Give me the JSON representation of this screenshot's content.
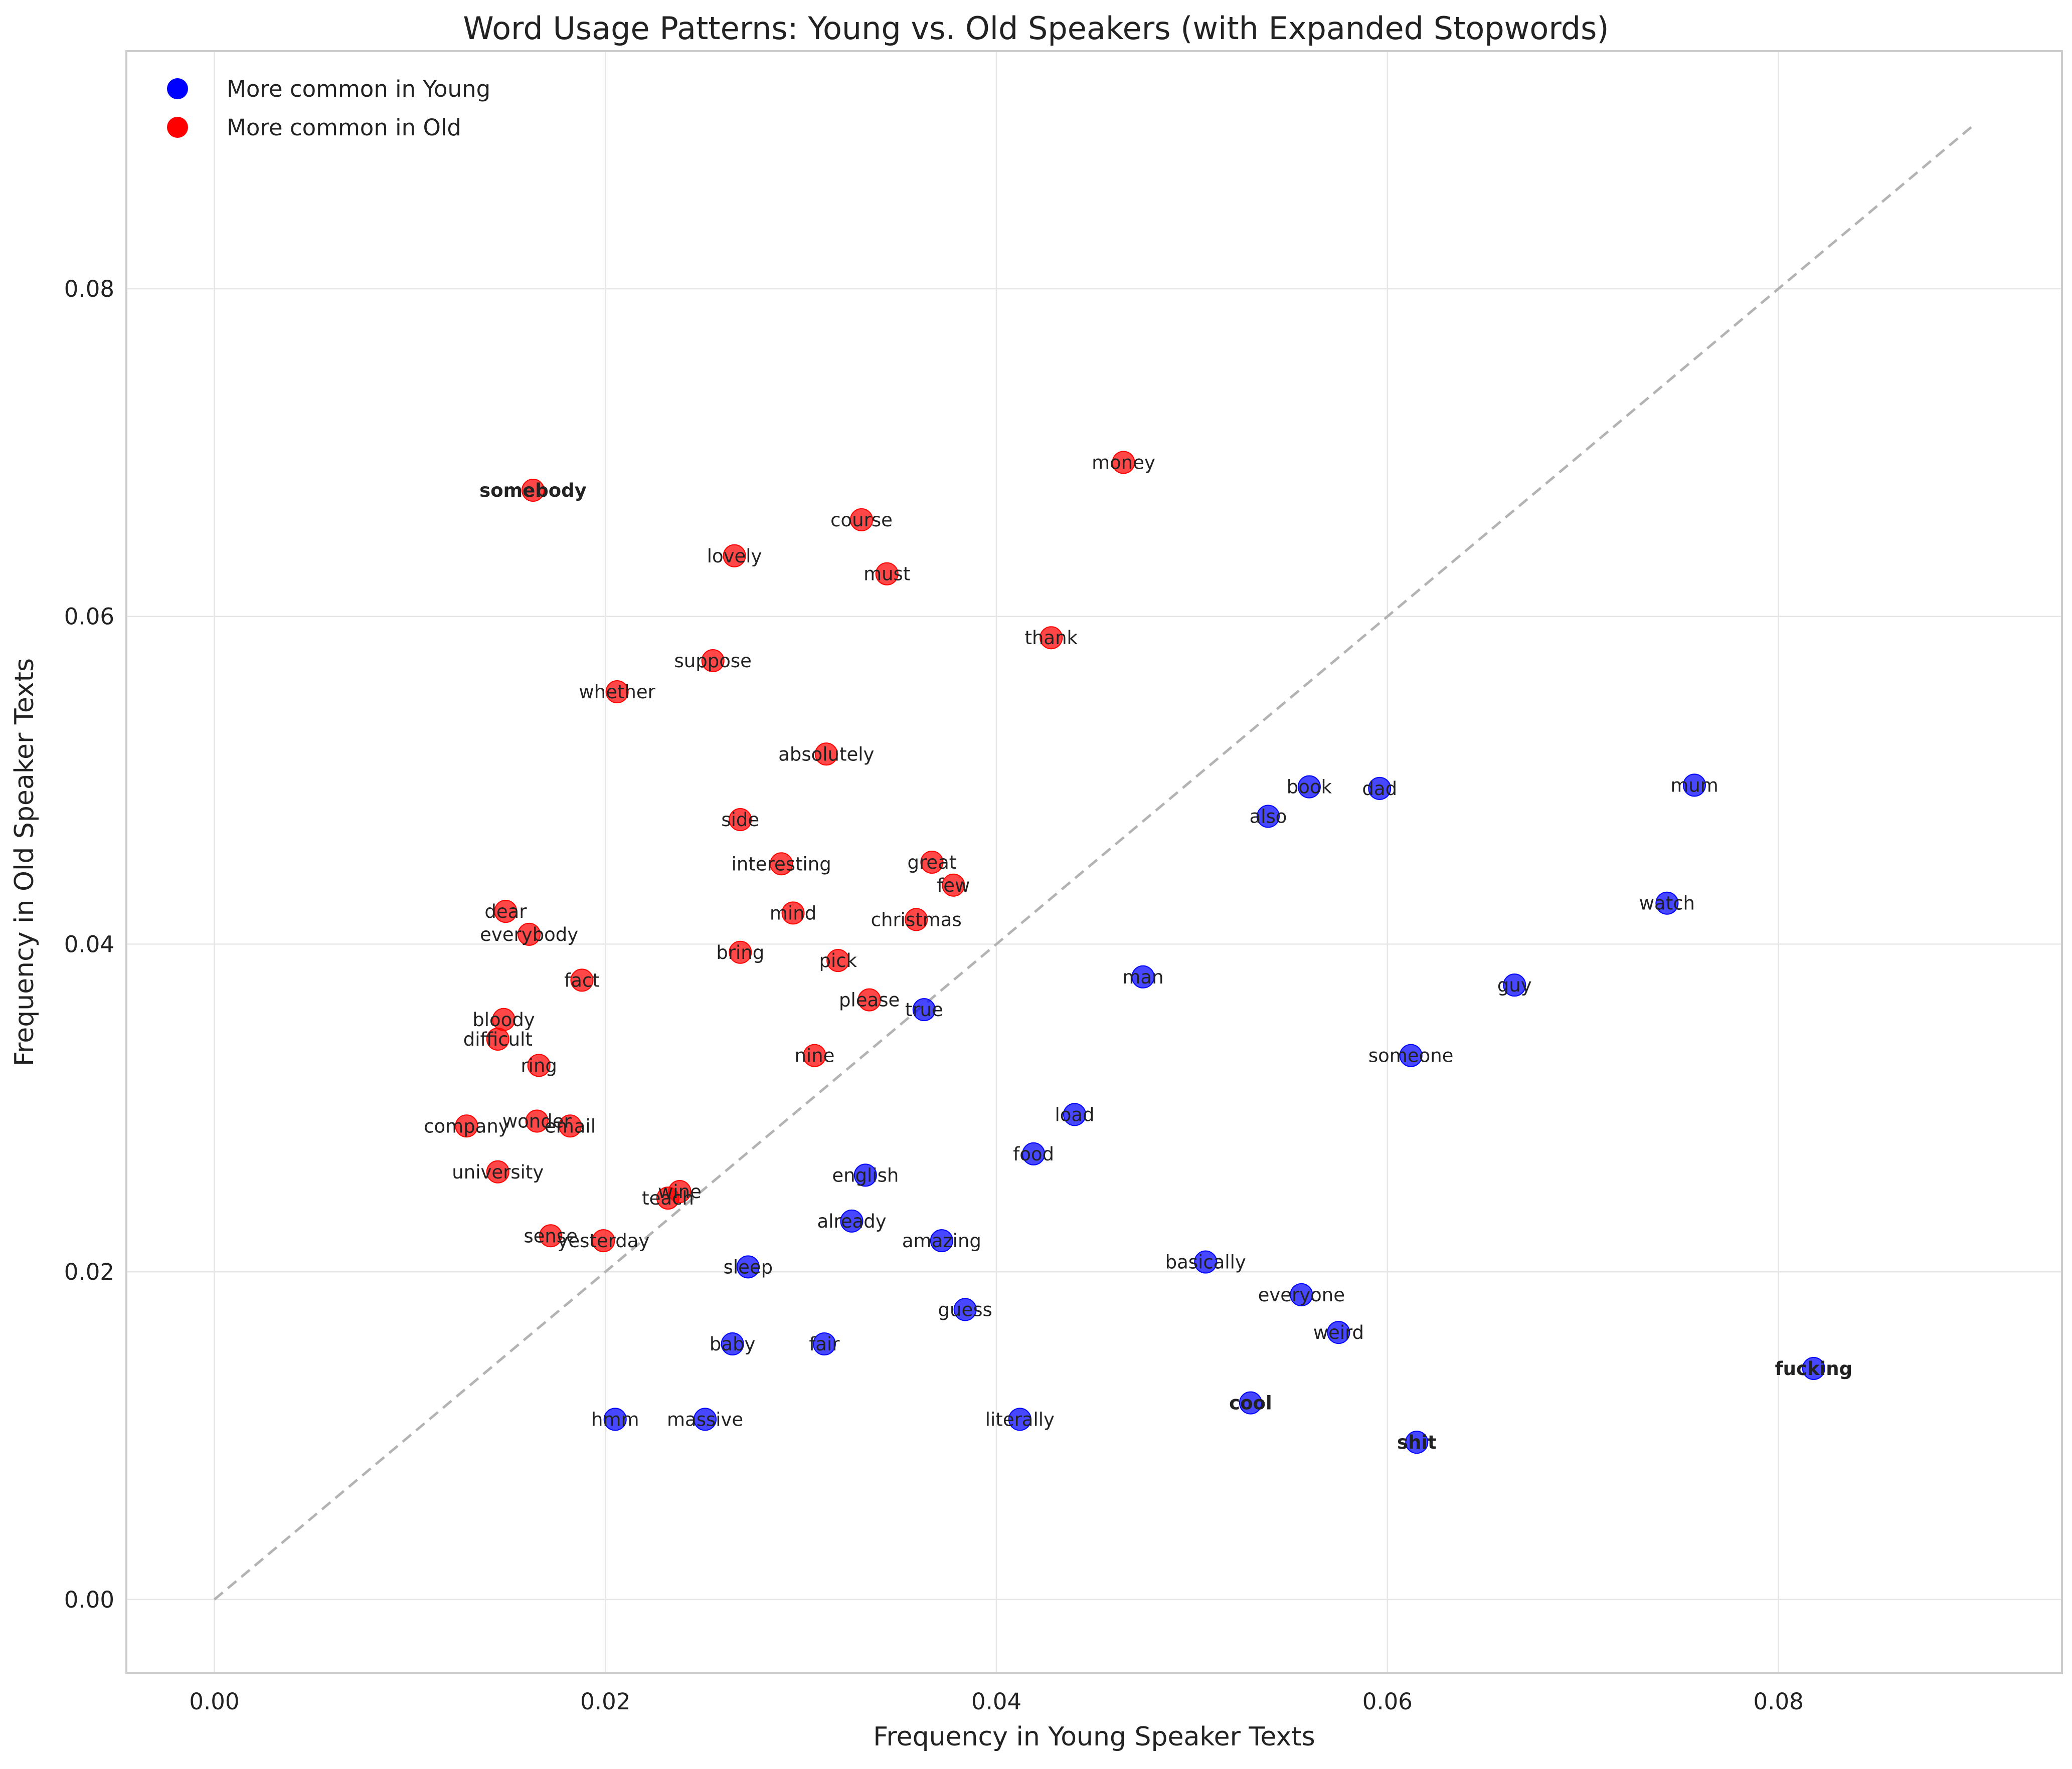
{
  "chart_data": {
    "type": "scatter",
    "title": "Word Usage Patterns: Young vs. Old Speakers (with Expanded Stopwords)",
    "xlabel": "Frequency in Young Speaker Texts",
    "ylabel": "Frequency in Old Speaker Texts",
    "xlim": [
      -0.0045,
      0.0945
    ],
    "ylim": [
      -0.0045,
      0.0945
    ],
    "xticks": [
      "0.00",
      "0.02",
      "0.04",
      "0.06",
      "0.08"
    ],
    "yticks": [
      "0.00",
      "0.02",
      "0.04",
      "0.06",
      "0.08"
    ],
    "reference_line": {
      "from": [
        0,
        0
      ],
      "to": [
        0.09,
        0.09
      ],
      "style": "dashed"
    },
    "grid": true,
    "legend": {
      "position": "top-left",
      "entries": [
        {
          "label": "More common in Young",
          "color": "#0000ff"
        },
        {
          "label": "More common in Old",
          "color": "#ff0000"
        }
      ]
    },
    "colors": {
      "young": "#0000ff",
      "old": "#ff0000",
      "diagonal": "#b3b3b3"
    },
    "series": [
      {
        "name": "More common in Young",
        "group": "young",
        "points": [
          {
            "word": "mum",
            "x": 0.0757,
            "y": 0.0497
          },
          {
            "word": "book",
            "x": 0.056,
            "y": 0.0496
          },
          {
            "word": "dad",
            "x": 0.0596,
            "y": 0.0495
          },
          {
            "word": "also",
            "x": 0.0539,
            "y": 0.0478
          },
          {
            "word": "watch",
            "x": 0.0743,
            "y": 0.0425
          },
          {
            "word": "man",
            "x": 0.0475,
            "y": 0.038
          },
          {
            "word": "guy",
            "x": 0.0665,
            "y": 0.0375
          },
          {
            "word": "true",
            "x": 0.0363,
            "y": 0.036
          },
          {
            "word": "someone",
            "x": 0.0612,
            "y": 0.0332
          },
          {
            "word": "load",
            "x": 0.044,
            "y": 0.0296
          },
          {
            "word": "food",
            "x": 0.0419,
            "y": 0.0272
          },
          {
            "word": "english",
            "x": 0.0333,
            "y": 0.0259
          },
          {
            "word": "already",
            "x": 0.0326,
            "y": 0.0231
          },
          {
            "word": "amazing",
            "x": 0.0372,
            "y": 0.0219
          },
          {
            "word": "basically",
            "x": 0.0507,
            "y": 0.0206
          },
          {
            "word": "sleep",
            "x": 0.0273,
            "y": 0.0203
          },
          {
            "word": "everyone",
            "x": 0.0556,
            "y": 0.0186
          },
          {
            "word": "guess",
            "x": 0.0384,
            "y": 0.0177
          },
          {
            "word": "weird",
            "x": 0.0575,
            "y": 0.0163
          },
          {
            "word": "baby",
            "x": 0.0265,
            "y": 0.0156
          },
          {
            "word": "fair",
            "x": 0.0312,
            "y": 0.0156
          },
          {
            "word": "fucking",
            "x": 0.0818,
            "y": 0.0141,
            "bold": true
          },
          {
            "word": "cool",
            "x": 0.053,
            "y": 0.012,
            "bold": true
          },
          {
            "word": "hmm",
            "x": 0.0205,
            "y": 0.011
          },
          {
            "word": "massive",
            "x": 0.0251,
            "y": 0.011
          },
          {
            "word": "literally",
            "x": 0.0412,
            "y": 0.011
          },
          {
            "word": "shit",
            "x": 0.0615,
            "y": 0.0096,
            "bold": true
          }
        ]
      },
      {
        "name": "More common in Old",
        "group": "old",
        "points": [
          {
            "word": "money",
            "x": 0.0465,
            "y": 0.0694
          },
          {
            "word": "somebody",
            "x": 0.0163,
            "y": 0.0677,
            "bold": true
          },
          {
            "word": "course",
            "x": 0.0331,
            "y": 0.0659
          },
          {
            "word": "lovely",
            "x": 0.0266,
            "y": 0.0637
          },
          {
            "word": "must",
            "x": 0.0344,
            "y": 0.0626
          },
          {
            "word": "thank",
            "x": 0.0428,
            "y": 0.0587
          },
          {
            "word": "suppose",
            "x": 0.0255,
            "y": 0.0573
          },
          {
            "word": "whether",
            "x": 0.0206,
            "y": 0.0554
          },
          {
            "word": "absolutely",
            "x": 0.0313,
            "y": 0.0516
          },
          {
            "word": "side",
            "x": 0.0269,
            "y": 0.0476
          },
          {
            "word": "interesting",
            "x": 0.029,
            "y": 0.0449
          },
          {
            "word": "great",
            "x": 0.0367,
            "y": 0.045
          },
          {
            "word": "few",
            "x": 0.0378,
            "y": 0.0436
          },
          {
            "word": "dear",
            "x": 0.0149,
            "y": 0.042
          },
          {
            "word": "mind",
            "x": 0.0296,
            "y": 0.0419
          },
          {
            "word": "christmas",
            "x": 0.0359,
            "y": 0.0415
          },
          {
            "word": "everybody",
            "x": 0.0161,
            "y": 0.0406
          },
          {
            "word": "bring",
            "x": 0.0269,
            "y": 0.0395
          },
          {
            "word": "pick",
            "x": 0.0319,
            "y": 0.039
          },
          {
            "word": "fact",
            "x": 0.0188,
            "y": 0.0378
          },
          {
            "word": "please",
            "x": 0.0335,
            "y": 0.0366
          },
          {
            "word": "bloody",
            "x": 0.0148,
            "y": 0.0354
          },
          {
            "word": "difficult",
            "x": 0.0145,
            "y": 0.0342
          },
          {
            "word": "nine",
            "x": 0.0307,
            "y": 0.0332
          },
          {
            "word": "ring",
            "x": 0.0166,
            "y": 0.0326
          },
          {
            "word": "wonder",
            "x": 0.0165,
            "y": 0.0292
          },
          {
            "word": "company",
            "x": 0.0129,
            "y": 0.0289
          },
          {
            "word": "email",
            "x": 0.0182,
            "y": 0.0289
          },
          {
            "word": "university",
            "x": 0.0145,
            "y": 0.0261
          },
          {
            "word": "wine",
            "x": 0.0238,
            "y": 0.0249
          },
          {
            "word": "teach",
            "x": 0.0232,
            "y": 0.0245
          },
          {
            "word": "sense",
            "x": 0.0172,
            "y": 0.0222
          },
          {
            "word": "yesterday",
            "x": 0.0199,
            "y": 0.0219
          }
        ]
      }
    ]
  }
}
